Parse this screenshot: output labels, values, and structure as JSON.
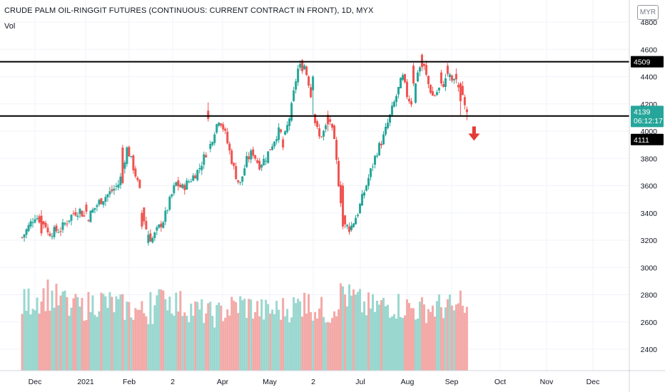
{
  "header": {
    "title": "CRUDE PALM OIL-RINGGIT FUTURES (CONTINUOUS: CURRENT CONTRACT IN FRONT), 1D, MYX",
    "volume_label": "Vol",
    "currency": "MYR"
  },
  "colors": {
    "up": "#26a69a",
    "down": "#ef5350",
    "vol_up": "#9ad7cf",
    "vol_down": "#f3a9a7",
    "grid": "#f0f3fa",
    "axis_text": "#131722",
    "level_line": "#000000",
    "price_tag": "#26a69a",
    "arrow": "#e53935"
  },
  "chart_data": {
    "type": "candlestick",
    "symbol": "CRUDE PALM OIL-RINGGIT FUTURES (CONTINUOUS: CURRENT CONTRACT IN FRONT)",
    "interval": "1D",
    "exchange": "MYX",
    "currency": "MYR",
    "y_ticks": [
      2400,
      2600,
      2800,
      3000,
      3200,
      3400,
      3600,
      3800,
      4000,
      4200,
      4400,
      4600,
      4800
    ],
    "x_ticks": [
      "Dec",
      "2021",
      "Feb",
      "2",
      "Apr",
      "May",
      "2",
      "Jul",
      "Aug",
      "Sep",
      "Oct",
      "Nov",
      "Dec"
    ],
    "grid": true,
    "horizontal_levels": [
      4509,
      4111
    ],
    "current_price": 4139,
    "countdown": "06:12:17",
    "annotation": "down-arrow",
    "price_path": [
      [
        3220,
        -1
      ],
      [
        3380,
        0
      ],
      [
        3300,
        1
      ],
      [
        3250,
        1
      ],
      [
        3280,
        2
      ],
      [
        3400,
        3
      ],
      [
        3420,
        3.5
      ],
      [
        3350,
        4
      ],
      [
        3480,
        5
      ],
      [
        3560,
        6
      ],
      [
        3620,
        6.6
      ],
      [
        3880,
        7.2
      ],
      [
        3700,
        7.8
      ],
      [
        3550,
        8.2
      ],
      [
        3300,
        8.6
      ],
      [
        3200,
        9.1
      ],
      [
        3280,
        9.6
      ],
      [
        3360,
        10.1
      ],
      [
        3480,
        10.5
      ],
      [
        3620,
        11
      ],
      [
        3580,
        11.5
      ],
      [
        3650,
        12.2
      ],
      [
        3720,
        12.8
      ],
      [
        3850,
        13.4
      ],
      [
        3900,
        13.7
      ],
      [
        4000,
        14
      ],
      [
        4100,
        14.4
      ],
      [
        4000,
        14.8
      ],
      [
        3850,
        15.2
      ],
      [
        3700,
        15.6
      ],
      [
        3600,
        16
      ],
      [
        3780,
        16.5
      ],
      [
        3850,
        17
      ],
      [
        3750,
        17.5
      ],
      [
        3800,
        18
      ],
      [
        3900,
        18.5
      ],
      [
        4000,
        19
      ],
      [
        3950,
        19.5
      ],
      [
        4150,
        20
      ],
      [
        4450,
        20.5
      ],
      [
        4500,
        21
      ],
      [
        4350,
        21.4
      ],
      [
        4100,
        21.8
      ],
      [
        3950,
        22.2
      ],
      [
        4000,
        22.6
      ],
      [
        4100,
        23
      ],
      [
        3900,
        23.4
      ],
      [
        3550,
        23.8
      ],
      [
        3300,
        24.2
      ],
      [
        3300,
        24.7
      ],
      [
        3400,
        25.2
      ],
      [
        3550,
        25.7
      ],
      [
        3700,
        26.2
      ],
      [
        3850,
        26.7
      ],
      [
        3950,
        27.2
      ],
      [
        4100,
        27.7
      ],
      [
        4250,
        28.2
      ],
      [
        4400,
        28.7
      ],
      [
        4250,
        29.1
      ],
      [
        4200,
        29.5
      ],
      [
        4450,
        29.9
      ],
      [
        4500,
        30.3
      ],
      [
        4350,
        30.7
      ],
      [
        4250,
        31.1
      ],
      [
        4300,
        31.5
      ],
      [
        4350,
        31.9
      ],
      [
        4400,
        32.3
      ],
      [
        4350,
        32.8
      ],
      [
        4300,
        33.3
      ],
      [
        4250,
        33.6
      ],
      [
        4139,
        33.9
      ]
    ],
    "price_overrides": [
      [
        0.5,
        3380,
        3250,
        3420,
        3230
      ],
      [
        4.0,
        3460,
        3410,
        3480,
        3390
      ],
      [
        6.9,
        3880,
        3620,
        3900,
        3610
      ],
      [
        7.2,
        3760,
        3880,
        3890,
        3740
      ],
      [
        8.3,
        3400,
        3300,
        3420,
        3280
      ],
      [
        8.9,
        3180,
        3240,
        3270,
        3160
      ],
      [
        13.6,
        4150,
        4090,
        4210,
        4070
      ],
      [
        19.4,
        3940,
        3880,
        3960,
        3860
      ],
      [
        20.8,
        4520,
        4440,
        4530,
        4420
      ],
      [
        21.7,
        4300,
        4400,
        4410,
        4120
      ],
      [
        22.9,
        4120,
        4050,
        4150,
        4000
      ],
      [
        24.0,
        3600,
        3300,
        3620,
        3280
      ],
      [
        24.5,
        3300,
        3260,
        3330,
        3240
      ],
      [
        29.6,
        4480,
        4350,
        4500,
        4330
      ],
      [
        30.2,
        4560,
        4470,
        4570,
        4440
      ],
      [
        31.8,
        4430,
        4350,
        4450,
        4330
      ],
      [
        32.3,
        4480,
        4420,
        4500,
        4400
      ],
      [
        32.9,
        4420,
        4380,
        4460,
        4350
      ],
      [
        33.3,
        4350,
        4220,
        4360,
        4110
      ],
      [
        33.6,
        4250,
        4190,
        4270,
        4160
      ],
      [
        33.8,
        4160,
        4139,
        4180,
        4080
      ]
    ],
    "volume_path": [
      [
        1800,
        -1
      ],
      [
        2100,
        1
      ],
      [
        1600,
        3
      ],
      [
        1900,
        5
      ],
      [
        1700,
        7
      ],
      [
        1550,
        9
      ],
      [
        2000,
        10
      ],
      [
        1700,
        12
      ],
      [
        1500,
        14
      ],
      [
        1800,
        16
      ],
      [
        1600,
        18
      ],
      [
        1700,
        20
      ],
      [
        1850,
        21
      ],
      [
        1550,
        23
      ],
      [
        2100,
        24
      ],
      [
        1700,
        26
      ],
      [
        1800,
        28
      ],
      [
        1650,
        30
      ],
      [
        1750,
        32
      ],
      [
        1500,
        33.9
      ]
    ],
    "volume_spikes": [
      [
        2.4,
        2120,
        1
      ],
      [
        3.1,
        2030,
        0
      ],
      [
        9.0,
        2080,
        1
      ],
      [
        10.1,
        2120,
        0
      ],
      [
        21.0,
        2060,
        0
      ],
      [
        24.1,
        2230,
        1
      ],
      [
        24.5,
        2280,
        1
      ],
      [
        24.9,
        2150,
        0
      ],
      [
        26.0,
        2070,
        0
      ],
      [
        33.2,
        2120,
        0
      ],
      [
        33.5,
        1530,
        0
      ]
    ]
  }
}
